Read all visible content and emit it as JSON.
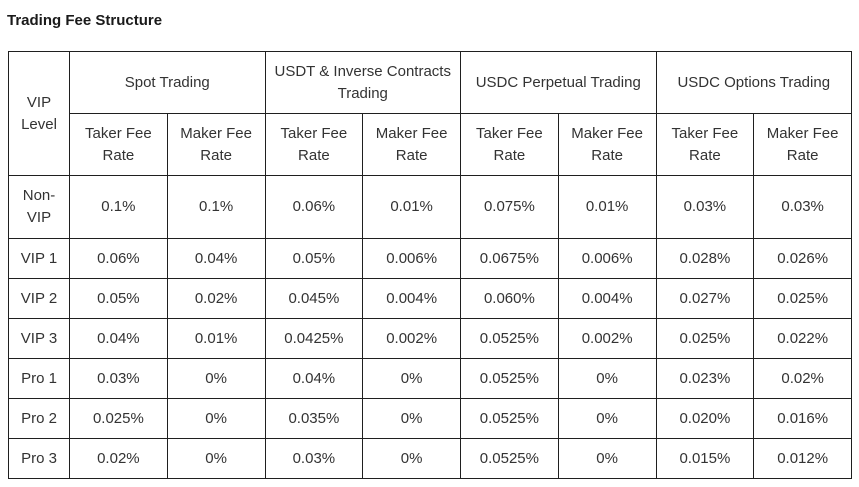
{
  "page": {
    "title": "Trading Fee Structure"
  },
  "table": {
    "level_header": "VIP Level",
    "groups": [
      {
        "label": "Spot Trading"
      },
      {
        "label": "USDT & Inverse Contracts Trading"
      },
      {
        "label": "USDC Perpetual Trading"
      },
      {
        "label": "USDC Options Trading"
      }
    ],
    "sub_headers": {
      "taker": "Taker Fee Rate",
      "maker": "Maker Fee Rate"
    },
    "rows": [
      {
        "level": "Non-VIP",
        "cells": [
          "0.1%",
          "0.1%",
          "0.06%",
          "0.01%",
          "0.075%",
          "0.01%",
          "0.03%",
          "0.03%"
        ]
      },
      {
        "level": "VIP 1",
        "cells": [
          "0.06%",
          "0.04%",
          "0.05%",
          "0.006%",
          "0.0675%",
          "0.006%",
          "0.028%",
          "0.026%"
        ]
      },
      {
        "level": "VIP 2",
        "cells": [
          "0.05%",
          "0.02%",
          "0.045%",
          "0.004%",
          "0.060%",
          "0.004%",
          "0.027%",
          "0.025%"
        ]
      },
      {
        "level": "VIP 3",
        "cells": [
          "0.04%",
          "0.01%",
          "0.0425%",
          "0.002%",
          "0.0525%",
          "0.002%",
          "0.025%",
          "0.022%"
        ]
      },
      {
        "level": "Pro 1",
        "cells": [
          "0.03%",
          "0%",
          "0.04%",
          "0%",
          "0.0525%",
          "0%",
          "0.023%",
          "0.02%"
        ]
      },
      {
        "level": "Pro 2",
        "cells": [
          "0.025%",
          "0%",
          "0.035%",
          "0%",
          "0.0525%",
          "0%",
          "0.020%",
          "0.016%"
        ]
      },
      {
        "level": "Pro 3",
        "cells": [
          "0.02%",
          "0%",
          "0.03%",
          "0%",
          "0.0525%",
          "0%",
          "0.015%",
          "0.012%"
        ]
      }
    ]
  }
}
